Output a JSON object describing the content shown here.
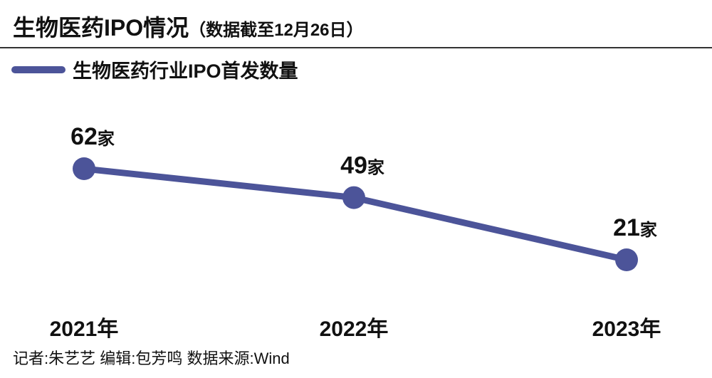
{
  "header": {
    "title": "生物医药IPO情况",
    "subtitle": "（数据截至12月26日）"
  },
  "footer": {
    "credits": "记者:朱艺艺  编辑:包芳鸣  数据来源:Wind"
  },
  "chart_data": {
    "type": "line",
    "title": "生物医药IPO情况（数据截至12月26日）",
    "categories": [
      "2021年",
      "2022年",
      "2023年"
    ],
    "series": [
      {
        "name": "生物医药行业IPO首发数量",
        "values": [
          62,
          49,
          21
        ],
        "labels": [
          "62家",
          "49家",
          "21家"
        ],
        "color": "#4c5499"
      }
    ],
    "unit": "家",
    "xlabel": "",
    "ylabel": "",
    "grid": false,
    "legend": "top-left"
  }
}
